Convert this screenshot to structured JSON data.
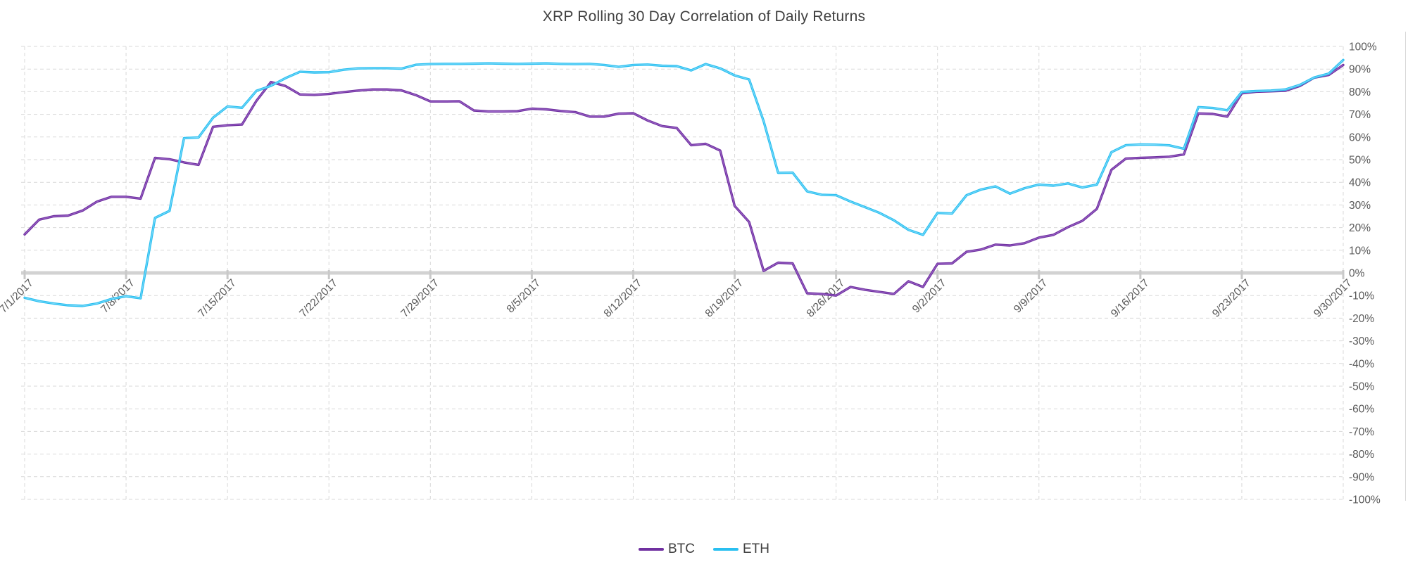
{
  "title": "XRP Rolling 30 Day Correlation of Daily Returns",
  "legend": {
    "items": [
      {
        "label": "BTC",
        "color": "#7030A0"
      },
      {
        "label": "ETH",
        "color": "#29BFF0"
      }
    ]
  },
  "chart_data": {
    "type": "line",
    "title": "XRP Rolling 30 Day Correlation of Daily Returns",
    "x_start": "7/1/2017",
    "x_end": "9/30/2017",
    "frequency": "daily",
    "x_tick_labels": [
      "7/1/2017",
      "7/8/2017",
      "7/15/2017",
      "7/22/2017",
      "7/29/2017",
      "8/5/2017",
      "8/12/2017",
      "8/19/2017",
      "8/26/2017",
      "9/2/2017",
      "9/9/2017",
      "9/16/2017",
      "9/23/2017",
      "9/30/2017"
    ],
    "y_tick_labels": [
      "100%",
      "90%",
      "80%",
      "70%",
      "60%",
      "50%",
      "40%",
      "30%",
      "20%",
      "10%",
      "0%",
      "-10%",
      "-20%",
      "-30%",
      "-40%",
      "-50%",
      "-60%",
      "-70%",
      "-80%",
      "-90%",
      "-100%"
    ],
    "ylim": [
      -100,
      100
    ],
    "y_unit": "%",
    "grid": "dashed",
    "legend_position": "bottom",
    "axis_color": "#595959",
    "gridline_color": "#D9D9D9",
    "zero_line_color": "#D2D2D2",
    "series": [
      {
        "name": "BTC",
        "color": "#7030A0",
        "highlight": "#9E6BCB",
        "values": [
          17,
          23.5,
          25,
          25.3,
          27.5,
          31.5,
          33.6,
          33.6,
          32.8,
          50.8,
          50.2,
          48.8,
          47.7,
          64.5,
          65.2,
          65.5,
          76,
          84.3,
          82.5,
          78.8,
          78.6,
          79,
          79.8,
          80.5,
          81,
          81,
          80.6,
          78.5,
          75.7,
          75.7,
          75.8,
          71.7,
          71.3,
          71.3,
          71.4,
          72.5,
          72.2,
          71.5,
          71,
          69,
          69,
          70.3,
          70.5,
          67.3,
          64.8,
          64,
          56.4,
          57,
          54,
          29.6,
          22.5,
          0.9,
          4.5,
          4.2,
          -9,
          -9.3,
          -10,
          -6.2,
          -7.5,
          -8.4,
          -9.3,
          -3.7,
          -6.2,
          4,
          4.2,
          9.3,
          10.3,
          12.5,
          12.1,
          13.1,
          15.6,
          16.8,
          20.2,
          23,
          28.3,
          45.5,
          50.5,
          50.8,
          51,
          51.3,
          52.3,
          70.4,
          70.2,
          69,
          79.3,
          80,
          80.2,
          80.4,
          82.5,
          86.2,
          87.4,
          91.8
        ]
      },
      {
        "name": "ETH",
        "color": "#29BFF0",
        "highlight": "#85DDFB",
        "values": [
          -11,
          -12.5,
          -13.5,
          -14.3,
          -14.6,
          -13.5,
          -11.5,
          -10.3,
          -11.2,
          24.3,
          27.4,
          59.5,
          59.8,
          68.5,
          73.5,
          72.9,
          80.4,
          82.6,
          86,
          88.8,
          88.5,
          88.6,
          89.7,
          90.3,
          90.4,
          90.4,
          90.2,
          91.9,
          92.2,
          92.3,
          92.3,
          92.4,
          92.5,
          92.4,
          92.3,
          92.4,
          92.5,
          92.3,
          92.2,
          92.3,
          91.8,
          91,
          91.8,
          92,
          91.5,
          91.3,
          89.4,
          92.2,
          90.3,
          87.2,
          85.4,
          67,
          44.2,
          44.3,
          36,
          34.5,
          34.3,
          31.5,
          29,
          26.5,
          23.2,
          19,
          16.8,
          26.5,
          26.2,
          34.3,
          36.8,
          38.2,
          35,
          37.4,
          39,
          38.5,
          39.5,
          37.7,
          39,
          53.3,
          56.4,
          56.7,
          56.6,
          56.3,
          54.8,
          73.2,
          72.8,
          71.8,
          79.9,
          80.3,
          80.5,
          81,
          83,
          86.3,
          88,
          94
        ]
      }
    ]
  }
}
